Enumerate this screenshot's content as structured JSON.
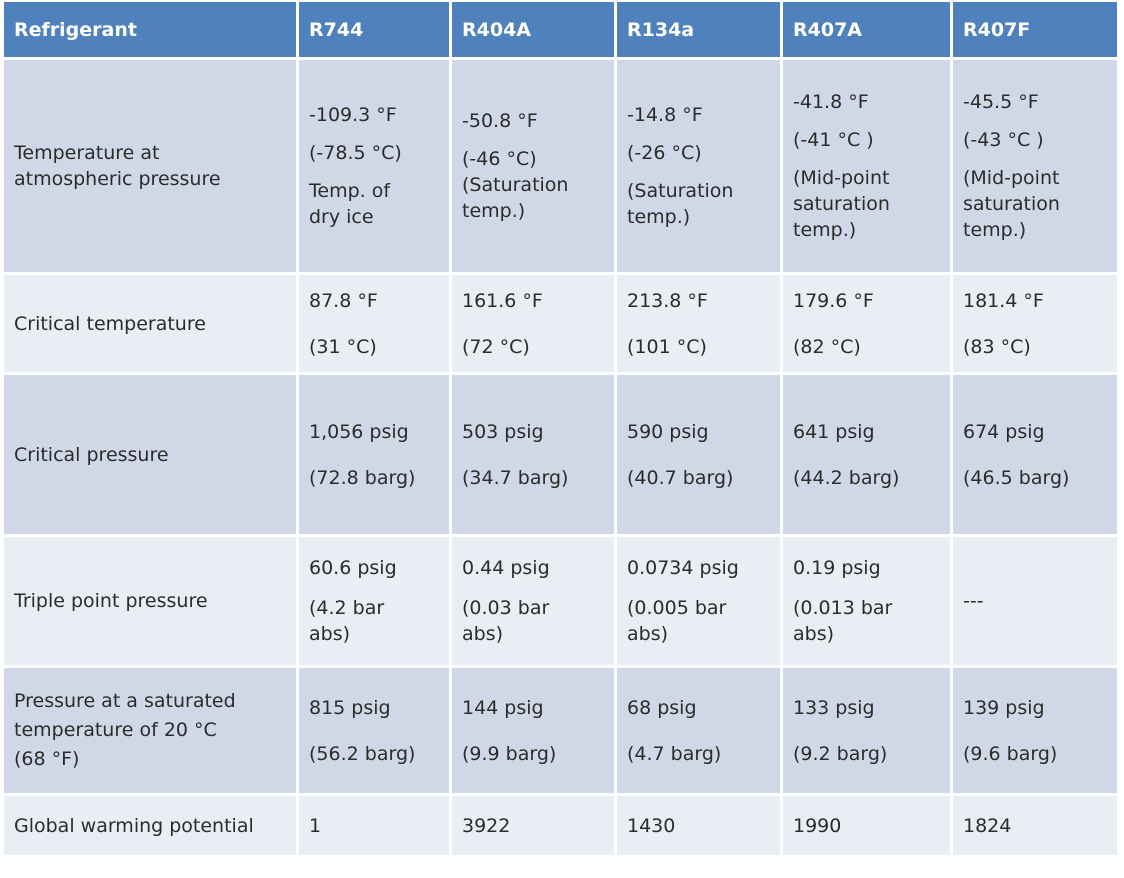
{
  "header": [
    "Refrigerant",
    "R744",
    "R404A",
    "R134a",
    "R407A",
    "R407F"
  ],
  "rows": [
    {
      "label": [
        "Temperature at",
        "atmospheric pressure"
      ],
      "cells": [
        [
          "-109.3 °F",
          "(-78.5 °C)",
          "Temp. of",
          "dry ice"
        ],
        [
          "-50.8 °F",
          "(-46 °C)",
          "(Saturation",
          "temp.)"
        ],
        [
          "-14.8 °F",
          "(-26 °C)",
          "(Saturation",
          "temp.)"
        ],
        [
          "-41.8 °F",
          "(-41 °C )",
          "(Mid-point",
          "saturation",
          "temp.)"
        ],
        [
          "-45.5 °F",
          "(-43 °C )",
          "(Mid-point",
          "saturation",
          "temp.)"
        ]
      ]
    },
    {
      "label": [
        "Critical temperature"
      ],
      "cells": [
        [
          "87.8 °F",
          "(31 °C)"
        ],
        [
          "161.6 °F",
          "(72 °C)"
        ],
        [
          "213.8 °F",
          "(101 °C)"
        ],
        [
          "179.6 °F",
          "(82 °C)"
        ],
        [
          "181.4 °F",
          "(83 °C)"
        ]
      ]
    },
    {
      "label": [
        "Critical pressure"
      ],
      "cells": [
        [
          "1,056 psig",
          "(72.8 barg)"
        ],
        [
          "503 psig",
          "(34.7 barg)"
        ],
        [
          "590 psig",
          "(40.7 barg)"
        ],
        [
          "641 psig",
          "(44.2 barg)"
        ],
        [
          "674 psig",
          "(46.5 barg)"
        ]
      ]
    },
    {
      "label": [
        "Triple point pressure"
      ],
      "cells": [
        [
          "60.6 psig",
          "(4.2 bar",
          "abs)"
        ],
        [
          "0.44 psig",
          "(0.03 bar",
          "abs)"
        ],
        [
          "0.0734 psig",
          "(0.005 bar",
          "abs)"
        ],
        [
          "0.19 psig",
          "(0.013 bar",
          "abs)"
        ],
        [
          "---"
        ]
      ]
    },
    {
      "label": [
        "Pressure at a saturated",
        "temperature of 20 °C",
        "(68 °F)"
      ],
      "cells": [
        [
          "815 psig",
          "(56.2 barg)"
        ],
        [
          "144 psig",
          "(9.9 barg)"
        ],
        [
          "68 psig",
          "(4.7 barg)"
        ],
        [
          "133 psig",
          "(9.2 barg)"
        ],
        [
          "139 psig",
          "(9.6 barg)"
        ]
      ]
    },
    {
      "label": [
        "Global warming potential"
      ],
      "cells": [
        [
          "1"
        ],
        [
          "3922"
        ],
        [
          "1430"
        ],
        [
          "1990"
        ],
        [
          "1824"
        ]
      ]
    }
  ]
}
